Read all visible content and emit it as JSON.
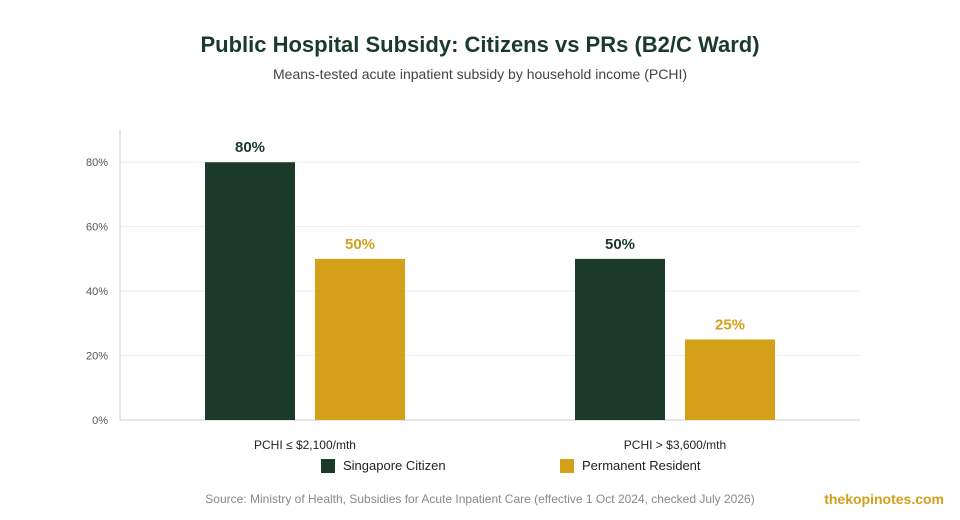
{
  "title": "Public Hospital Subsidy: Citizens vs PRs (B2/C Ward)",
  "subtitle": "Means-tested acute inpatient subsidy by household income (PCHI)",
  "source": "Source: Ministry of Health, Subsidies for Acute Inpatient Care (effective 1 Oct 2024, checked July 2026)",
  "brand": "thekopinotes.com",
  "colors": {
    "citizen": "#1b3a2a",
    "pr": "#d4a01a",
    "grid": "#eeeeee",
    "axis": "#cccccc",
    "tick_text": "#555555"
  },
  "chart_data": {
    "type": "bar",
    "categories": [
      "PCHI ≤ $2,100/mth",
      "PCHI > $3,600/mth"
    ],
    "series": [
      {
        "name": "Singapore Citizen",
        "values": [
          80,
          50
        ],
        "labels": [
          "80%",
          "50%"
        ]
      },
      {
        "name": "Permanent Resident",
        "values": [
          50,
          25
        ],
        "labels": [
          "50%",
          "25%"
        ]
      }
    ],
    "yticks": [
      "0%",
      "20%",
      "40%",
      "60%",
      "80%"
    ],
    "ytick_values": [
      0,
      20,
      40,
      60,
      80
    ],
    "ylim": [
      0,
      90
    ],
    "grid": true,
    "legend": "bottom"
  }
}
